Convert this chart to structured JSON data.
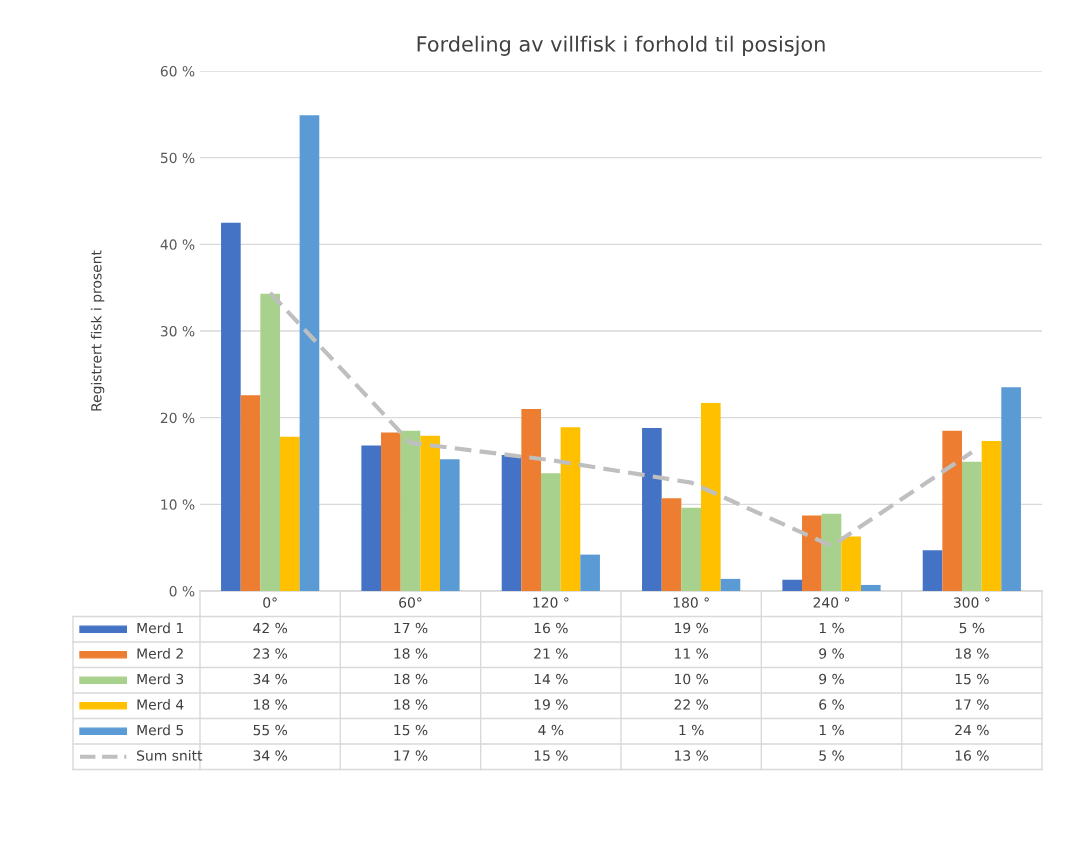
{
  "chart_data": {
    "type": "bar",
    "title": "Fordeling av villfisk i forhold til posisjon",
    "ylabel": "Registrert fisk i prosent",
    "categories": [
      "0°",
      "60°",
      "120 °",
      "180 °",
      "240 °",
      "300 °"
    ],
    "series": [
      {
        "name": "Merd 1",
        "color": "#4472c4",
        "values": [
          42.5,
          16.8,
          15.7,
          18.8,
          1.3,
          4.7
        ],
        "value_labels": [
          "42 %",
          "17 %",
          "16 %",
          "19 %",
          "1 %",
          "5 %"
        ]
      },
      {
        "name": "Merd 2",
        "color": "#ed7d31",
        "values": [
          22.6,
          18.3,
          21.0,
          10.7,
          8.7,
          18.5
        ],
        "value_labels": [
          "23 %",
          "18 %",
          "21 %",
          "11 %",
          "9 %",
          "18 %"
        ]
      },
      {
        "name": "Merd 3",
        "color": "#a9d18e",
        "values": [
          34.3,
          18.5,
          13.6,
          9.6,
          8.9,
          14.9
        ],
        "value_labels": [
          "34 %",
          "18 %",
          "14 %",
          "10 %",
          "9 %",
          "15 %"
        ]
      },
      {
        "name": "Merd 4",
        "color": "#ffc000",
        "values": [
          17.8,
          17.9,
          18.9,
          21.7,
          6.3,
          17.3
        ],
        "value_labels": [
          "18 %",
          "18 %",
          "19 %",
          "22 %",
          "6 %",
          "17 %"
        ]
      },
      {
        "name": "Merd 5",
        "color": "#5b9bd5",
        "values": [
          54.9,
          15.2,
          4.2,
          1.4,
          0.7,
          23.5
        ],
        "value_labels": [
          "55 %",
          "15 %",
          "4 %",
          "1 %",
          "1 %",
          "24 %"
        ]
      },
      {
        "name": "Sum snitt",
        "type": "line",
        "color": "#bfbfbf",
        "line_style": "dashed",
        "marker": "none",
        "values": [
          34.4,
          17.1,
          15.1,
          12.5,
          5.2,
          16.0
        ],
        "value_labels": [
          "34 %",
          "17 %",
          "15 %",
          "13 %",
          "5 %",
          "16 %"
        ]
      }
    ],
    "ylim": [
      0,
      60
    ],
    "yticks": [
      {
        "value": 0,
        "label": "0 %"
      },
      {
        "value": 10,
        "label": "10 %"
      },
      {
        "value": 20,
        "label": "20 %"
      },
      {
        "value": 30,
        "label": "30 %"
      },
      {
        "value": 40,
        "label": "40 %"
      },
      {
        "value": 50,
        "label": "50 %"
      },
      {
        "value": 60,
        "label": "60 %"
      }
    ],
    "grid": "y",
    "legend": "bottom"
  }
}
